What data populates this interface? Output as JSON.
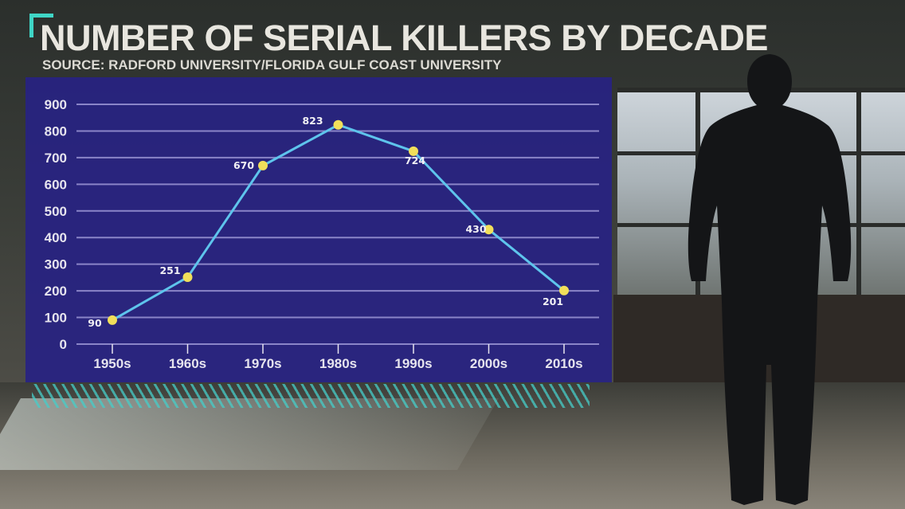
{
  "title": "NUMBER OF SERIAL KILLERS BY DECADE",
  "source": "SOURCE: RADFORD UNIVERSITY/FLORIDA GULF COAST UNIVERSITY",
  "colors": {
    "panel": "#28228a",
    "line": "#5ec4ec",
    "marker": "#f1df5a",
    "accent": "#3fd6c6",
    "grid": "#8a85c8"
  },
  "chart_data": {
    "type": "line",
    "title": "NUMBER OF SERIAL KILLERS BY DECADE",
    "subtitle": "SOURCE: RADFORD UNIVERSITY/FLORIDA GULF COAST UNIVERSITY",
    "xlabel": "",
    "ylabel": "",
    "categories": [
      "1950s",
      "1960s",
      "1970s",
      "1980s",
      "1990s",
      "2000s",
      "2010s"
    ],
    "values": [
      90,
      251,
      670,
      823,
      724,
      430,
      201
    ],
    "ylim": [
      0,
      900
    ],
    "yticks": [
      0,
      100,
      200,
      300,
      400,
      500,
      600,
      700,
      800,
      900
    ],
    "grid": true,
    "data_labels": true
  }
}
